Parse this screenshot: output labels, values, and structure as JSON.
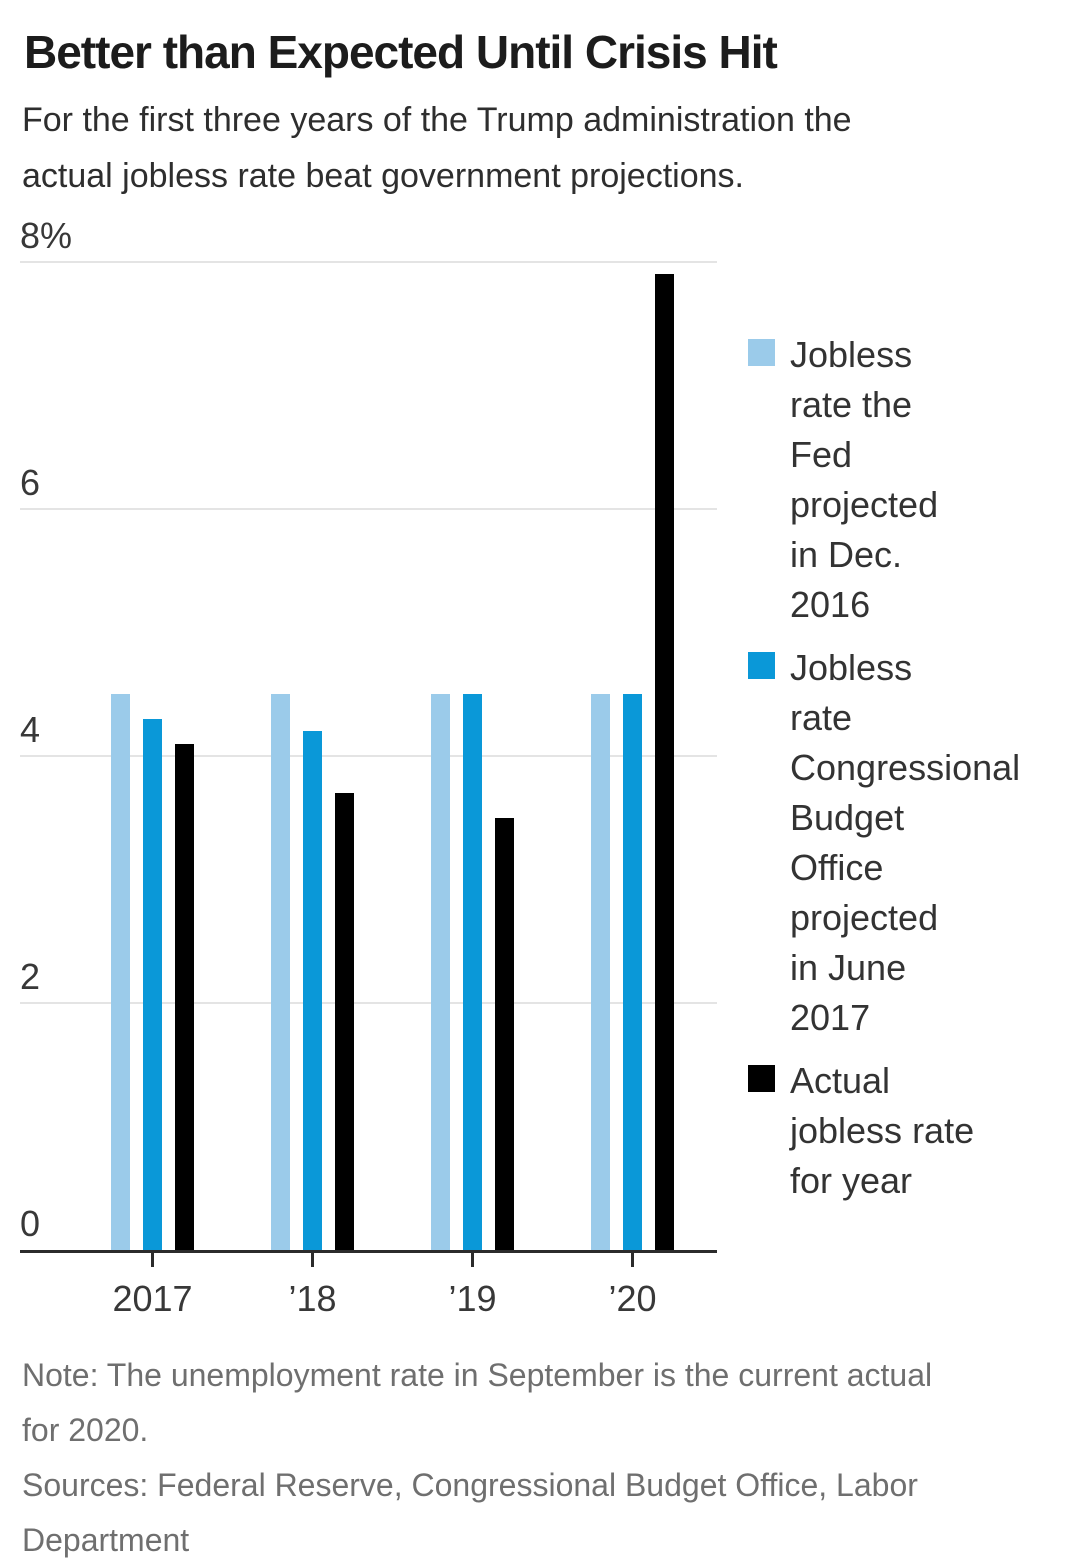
{
  "header": {
    "title": "Better than Expected Until Crisis Hit",
    "subtitle": "For the first three years of the Trump administration the\nactual jobless rate beat government projections."
  },
  "chart_data": {
    "type": "bar",
    "title": "Better than Expected Until Crisis Hit",
    "subtitle": "For the first three years of the Trump administration the actual jobless rate beat government projections.",
    "categories": [
      "2017",
      "’18",
      "’19",
      "’20"
    ],
    "series": [
      {
        "name": "Jobless rate the Fed projected in Dec. 2016",
        "color": "#9bcbea",
        "values": [
          4.5,
          4.5,
          4.5,
          4.5
        ]
      },
      {
        "name": "Jobless rate Congressional Budget Office projected in June 2017",
        "color": "#0a98d8",
        "values": [
          4.3,
          4.2,
          4.5,
          4.5
        ]
      },
      {
        "name": "Actual jobless rate for year",
        "color": "#000000",
        "values": [
          4.1,
          3.7,
          3.5,
          7.9
        ]
      }
    ],
    "xlabel": "",
    "ylabel": "",
    "ylim": [
      0,
      8
    ],
    "yticks": [
      0,
      2,
      4,
      6,
      8
    ],
    "ytick_labels": [
      "0",
      "2",
      "4",
      "6",
      "8%"
    ],
    "grid": "horizontal",
    "legend_position": "right",
    "colors": {
      "grid": "#e4e4e4",
      "axis": "#2b2b2b",
      "tick_text": "#383838"
    }
  },
  "legend": {
    "items": [
      {
        "text": "Jobless\nrate the\nFed\nprojected\nin Dec.\n2016",
        "color": "#9bcbea"
      },
      {
        "text": "Jobless\nrate\nCongressional\nBudget\nOffice\nprojected\nin June\n2017",
        "color": "#0a98d8"
      },
      {
        "text": "Actual\njobless rate\nfor year",
        "color": "#000000"
      }
    ]
  },
  "footer": {
    "note": "Note: The unemployment rate in September is the current actual\nfor 2020.",
    "sources": "Sources: Federal Reserve, Congressional Budget Office, Labor\nDepartment"
  }
}
